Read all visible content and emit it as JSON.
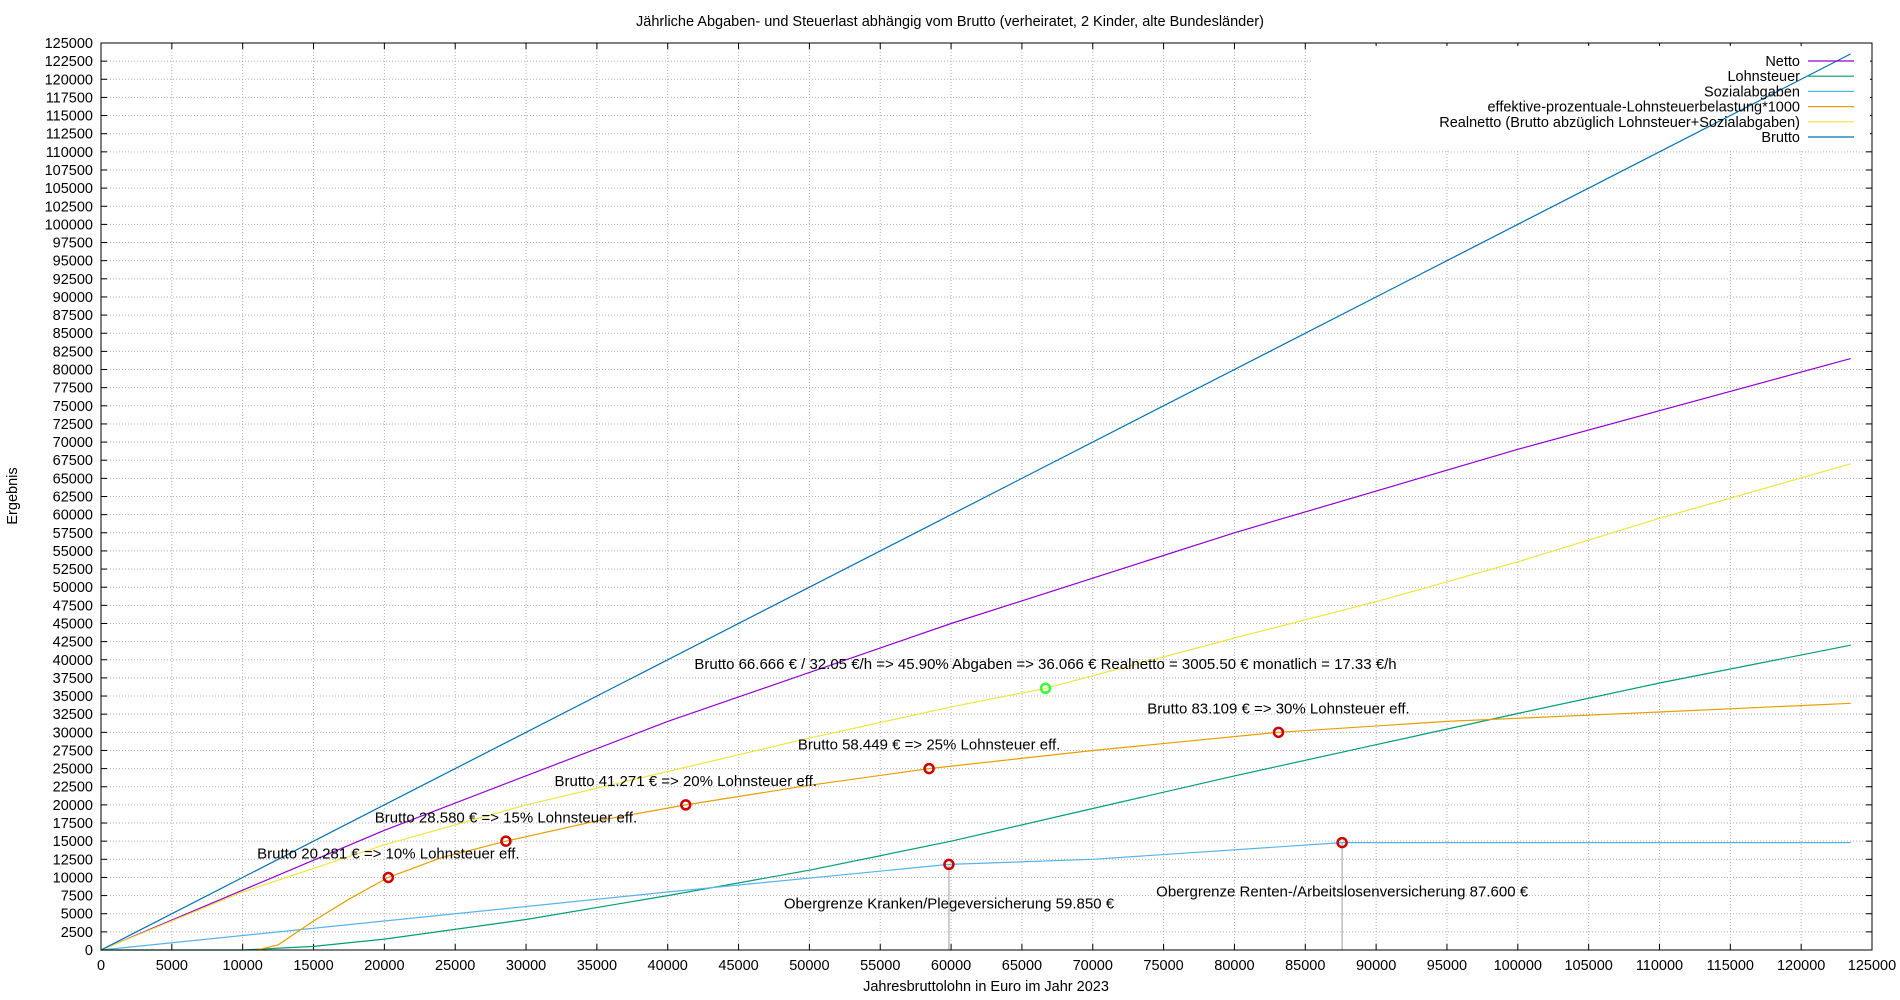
{
  "chart_data": {
    "type": "line",
    "title": "Jährliche Abgaben- und Steuerlast abhängig vom Brutto (verheiratet, 2 Kinder, alte Bundesländer)",
    "xlabel": "Jahresbruttolohn in Euro im Jahr 2023",
    "ylabel": "Ergebnis",
    "xlim": [
      0,
      125000
    ],
    "ylim": [
      0,
      125000
    ],
    "xticks": [
      0,
      5000,
      10000,
      15000,
      20000,
      25000,
      30000,
      35000,
      40000,
      45000,
      50000,
      55000,
      60000,
      65000,
      70000,
      75000,
      80000,
      85000,
      90000,
      95000,
      100000,
      105000,
      110000,
      115000,
      120000,
      125000
    ],
    "yticks": [
      0,
      2500,
      5000,
      7500,
      10000,
      12500,
      15000,
      17500,
      20000,
      22500,
      25000,
      27500,
      30000,
      32500,
      35000,
      37500,
      40000,
      42500,
      45000,
      47500,
      50000,
      52500,
      55000,
      57500,
      60000,
      62500,
      65000,
      67500,
      70000,
      72500,
      75000,
      77500,
      80000,
      82500,
      85000,
      87500,
      90000,
      92500,
      95000,
      97500,
      100000,
      102500,
      105000,
      107500,
      110000,
      112500,
      115000,
      117500,
      120000,
      122500,
      125000
    ],
    "grid": true,
    "legend_position": "top-right",
    "series": [
      {
        "name": "Netto",
        "color": "#9400d3",
        "x": [
          0,
          20000,
          40000,
          60000,
          80000,
          100000,
          123500
        ],
        "y": [
          0,
          16500,
          31500,
          45000,
          57500,
          69000,
          81500
        ]
      },
      {
        "name": "Lohnsteuer",
        "color": "#009e73",
        "x": [
          0,
          10000,
          15000,
          20000,
          30000,
          40000,
          50000,
          60000,
          70000,
          80000,
          90000,
          100000,
          110000,
          123500
        ],
        "y": [
          0,
          0,
          500,
          1500,
          4200,
          7500,
          11000,
          15000,
          19500,
          24000,
          28300,
          32600,
          36800,
          42000
        ]
      },
      {
        "name": "Sozialabgaben",
        "color": "#56b4e9",
        "x": [
          0,
          20000,
          40000,
          59850,
          70000,
          87600,
          123500
        ],
        "y": [
          0,
          4000,
          8000,
          11800,
          12500,
          14800,
          14800
        ]
      },
      {
        "name": "effektive-prozentuale-Lohnsteuerbelastung*1000",
        "color": "#e69f00",
        "x": [
          11000,
          12500,
          15000,
          17500,
          20281,
          24000,
          28580,
          35000,
          41271,
          50000,
          58449,
          70000,
          83109,
          95000,
          110000,
          123500
        ],
        "y": [
          0,
          700,
          4000,
          7000,
          10000,
          12700,
          15000,
          17800,
          20000,
          22700,
          25000,
          27500,
          30000,
          31500,
          32800,
          34000
        ]
      },
      {
        "name": "Realnetto (Brutto abzüglich Lohnsteuer+Sozialabgaben)",
        "color": "#f0e442",
        "x": [
          0,
          10000,
          20000,
          30000,
          40000,
          50000,
          60000,
          66666,
          80000,
          90000,
          100000,
          110000,
          123500
        ],
        "y": [
          0,
          8000,
          14500,
          20000,
          24600,
          29200,
          33500,
          36066,
          43000,
          48000,
          53500,
          59500,
          67000
        ]
      },
      {
        "name": "Brutto",
        "color": "#0072b2",
        "x": [
          0,
          123500
        ],
        "y": [
          0,
          123500
        ]
      }
    ],
    "vertical_lines": [
      {
        "x": 59850,
        "y_top": 11800,
        "color": "#a0a0a0"
      },
      {
        "x": 87600,
        "y_top": 14800,
        "color": "#a0a0a0"
      }
    ],
    "markers": [
      {
        "x": 20281,
        "y": 10000,
        "color": "#cc0000"
      },
      {
        "x": 28580,
        "y": 15000,
        "color": "#cc0000"
      },
      {
        "x": 41271,
        "y": 20000,
        "color": "#cc0000"
      },
      {
        "x": 58449,
        "y": 25000,
        "color": "#cc0000"
      },
      {
        "x": 83109,
        "y": 30000,
        "color": "#cc0000"
      },
      {
        "x": 59850,
        "y": 11800,
        "color": "#cc0000"
      },
      {
        "x": 87600,
        "y": 14800,
        "color": "#cc0000"
      },
      {
        "x": 66666,
        "y": 36066,
        "color": "#33ff33"
      }
    ],
    "annotations": [
      {
        "text": "Brutto 20.281 € => 10% Lohnsteuer eff.",
        "x": 20281,
        "y": 12600
      },
      {
        "text": "Brutto 28.580 € => 15% Lohnsteuer eff.",
        "x": 28580,
        "y": 17600
      },
      {
        "text": "Brutto 41.271 € => 20% Lohnsteuer eff.",
        "x": 41271,
        "y": 22600
      },
      {
        "text": "Brutto 58.449 € => 25% Lohnsteuer eff.",
        "x": 58449,
        "y": 27600
      },
      {
        "text": "Brutto 83.109 € => 30% Lohnsteuer eff.",
        "x": 83109,
        "y": 32600
      },
      {
        "text": "Brutto 66.666 € / 32.05 €/h => 45.90% Abgaben => 36.066 € Realnetto = 3005.50 € monatlich = 17.33 €/h",
        "x": 66666,
        "y": 38700
      },
      {
        "text": "Obergrenze Kranken/Plegeversicherung 59.850 €",
        "x": 59850,
        "y": 5700
      },
      {
        "text": "Obergrenze Renten-/Arbeitslosenversicherung 87.600 €",
        "x": 87600,
        "y": 7400
      }
    ]
  }
}
